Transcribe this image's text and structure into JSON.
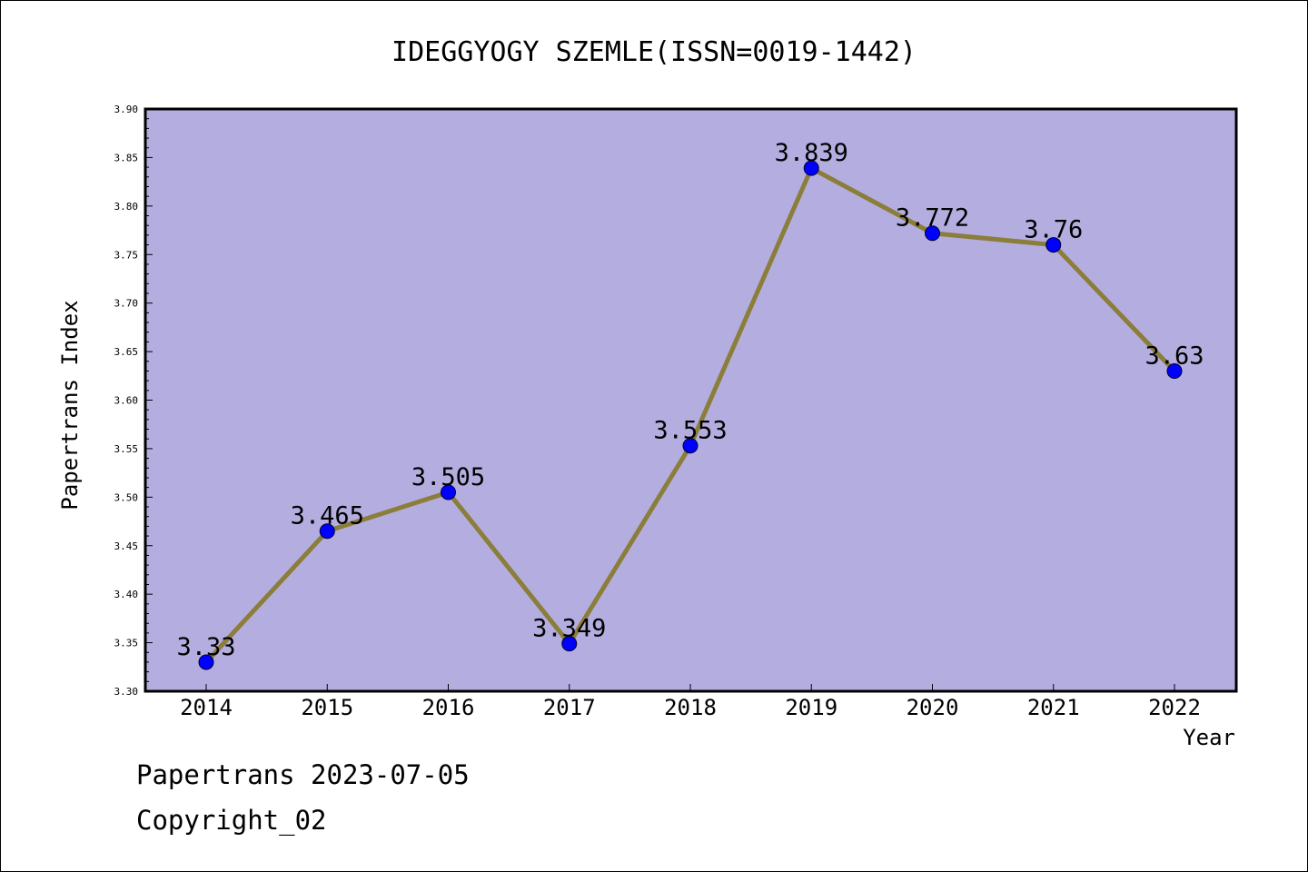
{
  "chart_data": {
    "type": "line",
    "title": "IDEGGYOGY SZEMLE(ISSN=0019-1442)",
    "xlabel": "Year",
    "ylabel": "Papertrans Index",
    "categories": [
      "2014",
      "2015",
      "2016",
      "2017",
      "2018",
      "2019",
      "2020",
      "2021",
      "2022"
    ],
    "series": [
      {
        "values": [
          3.33,
          3.465,
          3.505,
          3.349,
          3.553,
          3.839,
          3.772,
          3.76,
          3.63
        ],
        "labels": [
          "3.33",
          "3.465",
          "3.505",
          "3.349",
          "3.553",
          "3.839",
          "3.772",
          "3.76",
          "3.63"
        ]
      }
    ],
    "ylim": [
      3.3,
      3.9
    ],
    "yticks": [
      "3.30",
      "3.35",
      "3.40",
      "3.45",
      "3.50",
      "3.55",
      "3.60",
      "3.65",
      "3.70",
      "3.75",
      "3.80",
      "3.85",
      "3.90"
    ],
    "grid": false,
    "colors": {
      "plot_background": "#b4aee0",
      "line": "#8b7d3a",
      "marker": "#0000ff"
    }
  },
  "footer": {
    "date_text": "Papertrans 2023-07-05",
    "copyright_text": "Copyright_02"
  }
}
